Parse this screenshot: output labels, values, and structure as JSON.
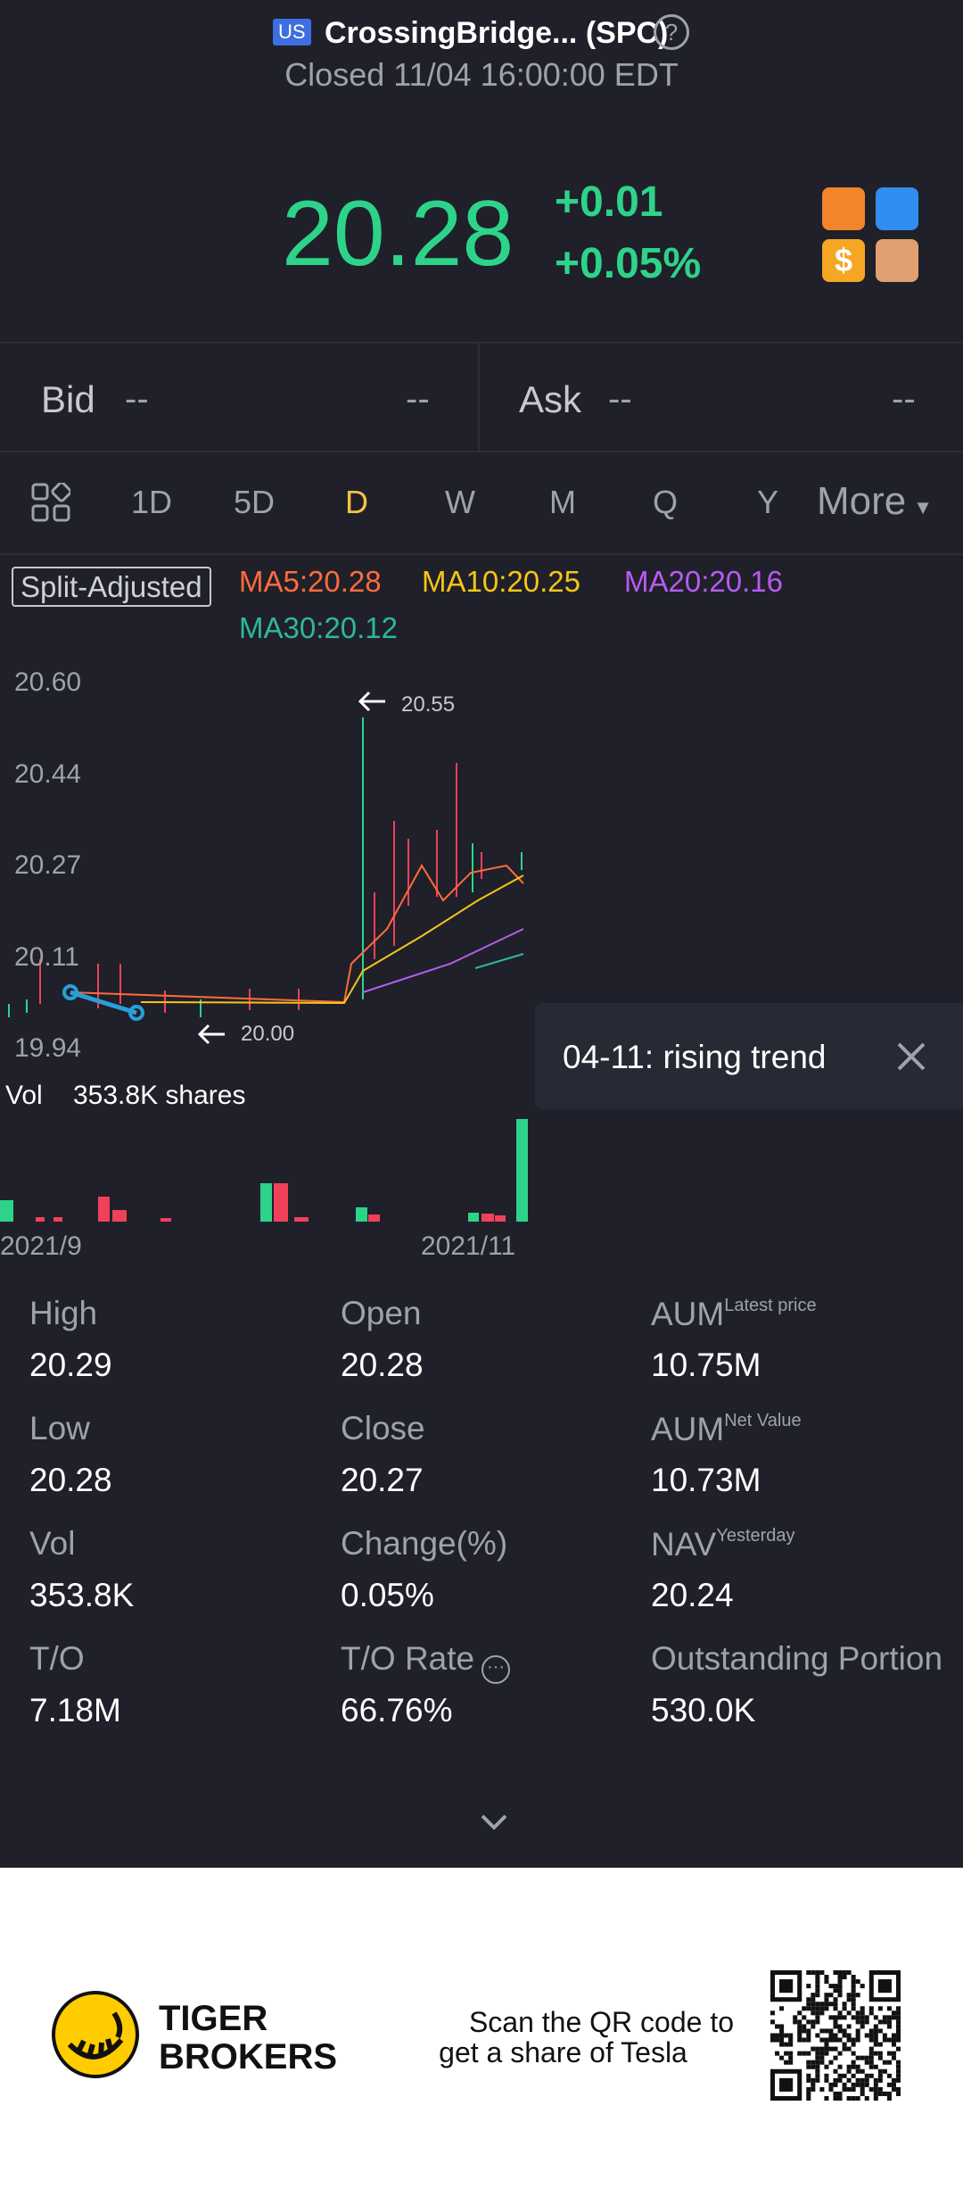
{
  "header": {
    "market": "US",
    "title": "CrossingBridge... (SPC)",
    "status": "Closed 11/04 16:00:00 EDT"
  },
  "quote": {
    "price": "20.28",
    "change": "+0.01",
    "change_pct": "+0.05%"
  },
  "bid_ask": {
    "bid_label": "Bid",
    "bid_price": "--",
    "bid_size": "--",
    "ask_label": "Ask",
    "ask_price": "--",
    "ask_size": "--"
  },
  "tabs": [
    "1D",
    "5D",
    "D",
    "W",
    "M",
    "Q",
    "Y",
    "More"
  ],
  "active_tab": "D",
  "chart": {
    "adjust": "Split-Adjusted",
    "ma": [
      {
        "label": "MA5:20.28",
        "color": "#ff6b3d"
      },
      {
        "label": "MA10:20.25",
        "color": "#f5c518"
      },
      {
        "label": "MA20:20.16",
        "color": "#b75cf0"
      },
      {
        "label": "MA30:20.12",
        "color": "#2fb6a0"
      }
    ],
    "yticks": [
      "20.60",
      "20.44",
      "20.27",
      "20.11",
      "19.94"
    ],
    "high_note": "20.55",
    "low_note": "20.00",
    "volume_label": "Vol",
    "volume": "353.8K shares",
    "xlabels": [
      "2021/9",
      "2021/11"
    ]
  },
  "tooltip": "04-11: rising trend",
  "stats": [
    {
      "label": "High",
      "value": "20.29"
    },
    {
      "label": "Open",
      "value": "20.28"
    },
    {
      "label": "AUM",
      "sup": "Latest price",
      "value": "10.75M"
    },
    {
      "label": "Low",
      "value": "20.28"
    },
    {
      "label": "Close",
      "value": "20.27"
    },
    {
      "label": "AUM",
      "sup": "Net Value",
      "value": "10.73M"
    },
    {
      "label": "Vol",
      "value": "353.8K"
    },
    {
      "label": "Change(%)",
      "value": "0.05%"
    },
    {
      "label": "NAV",
      "sup": "Yesterday",
      "value": "20.24"
    },
    {
      "label": "T/O",
      "value": "7.18M"
    },
    {
      "label": "T/O Rate",
      "value": "66.76%"
    },
    {
      "label": "Outstanding Portion",
      "value": "530.0K"
    }
  ],
  "footer": {
    "brand": [
      "TIGER",
      "BROKERS"
    ],
    "promo": [
      "Scan the QR code to",
      "get a share of Tesla"
    ]
  }
}
